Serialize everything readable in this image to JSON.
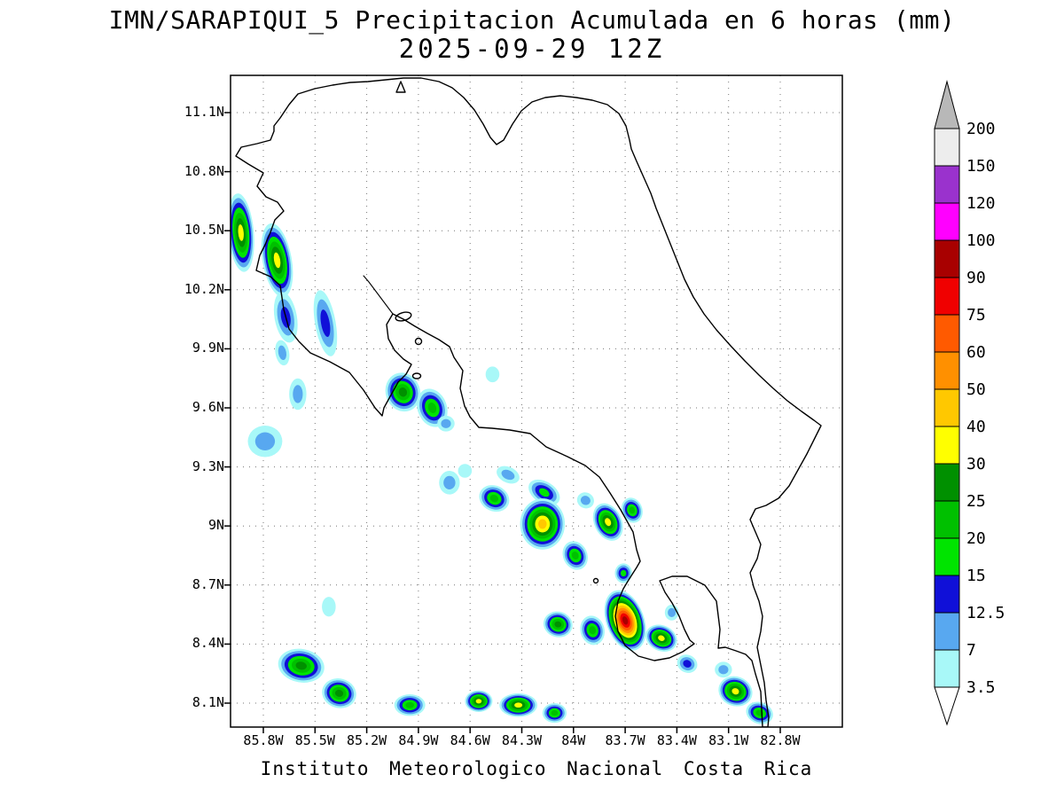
{
  "title": {
    "line1": "IMN/SARAPIQUI_5 Precipitacion Acumulada en 6 horas (mm)",
    "line2": "2025-09-29 12Z"
  },
  "footer": "Instituto Meteorologico Nacional Costa Rica",
  "map": {
    "lat_labels": [
      "11.1N",
      "10.8N",
      "10.5N",
      "10.2N",
      "9.9N",
      "9.6N",
      "9.3N",
      "9N",
      "8.7N",
      "8.4N",
      "8.1N"
    ],
    "lon_labels": [
      "85.8W",
      "85.5W",
      "85.2W",
      "84.9W",
      "84.6W",
      "84.3W",
      "84W",
      "83.7W",
      "83.4W",
      "83.1W",
      "82.8W"
    ]
  },
  "colorbar": {
    "labels": [
      "200",
      "150",
      "120",
      "100",
      "90",
      "75",
      "60",
      "50",
      "40",
      "30",
      "25",
      "20",
      "15",
      "12.5",
      "7",
      "3.5"
    ],
    "segment_colors": [
      "#ededed",
      "#9a32cd",
      "#ff00ff",
      "#a80000",
      "#f00000",
      "#ff5a00",
      "#ff9000",
      "#ffc800",
      "#ffff00",
      "#009000",
      "#00c000",
      "#00e400",
      "#1010d8",
      "#58a8f0",
      "#a8f8f8"
    ],
    "over_color": "#b8b8b8",
    "under_color": "#ffffff"
  },
  "chart_data": {
    "type": "heatmap",
    "title": "IMN/SARAPIQUI_5 Precipitacion Acumulada en 6 horas (mm)",
    "valid_time": "2025-09-29 12Z",
    "units": "mm",
    "region": "Costa Rica",
    "lon_axis_deg_w": [
      85.8,
      85.5,
      85.2,
      84.9,
      84.6,
      84.3,
      84.0,
      83.7,
      83.4,
      83.1,
      82.8
    ],
    "lat_axis_deg_n": [
      11.1,
      10.8,
      10.5,
      10.2,
      9.9,
      9.6,
      9.3,
      9.0,
      8.7,
      8.4,
      8.1
    ],
    "levels_mm": [
      3.5,
      7,
      12.5,
      15,
      20,
      25,
      30,
      40,
      50,
      60,
      75,
      90,
      100,
      120,
      150,
      200
    ],
    "level_colors": [
      "#a8f8f8",
      "#58a8f0",
      "#1010d8",
      "#00e400",
      "#00c000",
      "#009000",
      "#ffff00",
      "#ffc800",
      "#ff9000",
      "#ff5a00",
      "#f00000",
      "#a80000",
      "#ff00ff",
      "#9a32cd",
      "#ededed",
      "#b8b8b8"
    ],
    "features_note": "Shaded precipitation cells: lon(degW), lat(degN), rx/ry in deg, rot in deg, max = index of peak contour level reached in levels_mm",
    "features": [
      {
        "lon": 85.93,
        "lat": 10.49,
        "rx": 0.075,
        "ry": 0.2,
        "rot": -5,
        "max": 6
      },
      {
        "lon": 85.72,
        "lat": 10.35,
        "rx": 0.085,
        "ry": 0.19,
        "rot": -10,
        "max": 6
      },
      {
        "lon": 85.67,
        "lat": 10.06,
        "rx": 0.065,
        "ry": 0.13,
        "rot": -10,
        "max": 2
      },
      {
        "lon": 85.44,
        "lat": 10.03,
        "rx": 0.06,
        "ry": 0.17,
        "rot": -10,
        "max": 2
      },
      {
        "lon": 85.69,
        "lat": 9.88,
        "rx": 0.04,
        "ry": 0.065,
        "rot": -10,
        "max": 1
      },
      {
        "lon": 85.6,
        "lat": 9.67,
        "rx": 0.05,
        "ry": 0.08,
        "rot": 0,
        "max": 1
      },
      {
        "lon": 85.79,
        "lat": 9.43,
        "rx": 0.1,
        "ry": 0.08,
        "rot": 0,
        "max": 1
      },
      {
        "lon": 84.99,
        "lat": 9.68,
        "rx": 0.1,
        "ry": 0.1,
        "rot": -20,
        "max": 5
      },
      {
        "lon": 84.82,
        "lat": 9.6,
        "rx": 0.085,
        "ry": 0.1,
        "rot": -20,
        "max": 4
      },
      {
        "lon": 84.74,
        "lat": 9.52,
        "rx": 0.05,
        "ry": 0.04,
        "rot": 0,
        "max": 1
      },
      {
        "lon": 84.72,
        "lat": 9.22,
        "rx": 0.06,
        "ry": 0.06,
        "rot": 0,
        "max": 1
      },
      {
        "lon": 84.63,
        "lat": 9.28,
        "rx": 0.04,
        "ry": 0.035,
        "rot": 0,
        "max": 0
      },
      {
        "lon": 84.47,
        "lat": 9.77,
        "rx": 0.04,
        "ry": 0.04,
        "rot": 0,
        "max": 0
      },
      {
        "lon": 84.46,
        "lat": 9.14,
        "rx": 0.09,
        "ry": 0.065,
        "rot": 25,
        "max": 4
      },
      {
        "lon": 84.38,
        "lat": 9.26,
        "rx": 0.07,
        "ry": 0.04,
        "rot": 25,
        "max": 1
      },
      {
        "lon": 84.17,
        "lat": 9.17,
        "rx": 0.1,
        "ry": 0.055,
        "rot": 32,
        "max": 3
      },
      {
        "lon": 84.18,
        "lat": 9.01,
        "rx": 0.13,
        "ry": 0.13,
        "rot": 0,
        "max": 7
      },
      {
        "lon": 83.99,
        "lat": 8.85,
        "rx": 0.07,
        "ry": 0.075,
        "rot": -25,
        "max": 4
      },
      {
        "lon": 83.93,
        "lat": 9.13,
        "rx": 0.05,
        "ry": 0.04,
        "rot": 25,
        "max": 1
      },
      {
        "lon": 83.8,
        "lat": 9.02,
        "rx": 0.08,
        "ry": 0.1,
        "rot": -25,
        "max": 6
      },
      {
        "lon": 83.66,
        "lat": 9.08,
        "rx": 0.06,
        "ry": 0.065,
        "rot": -20,
        "max": 4
      },
      {
        "lon": 83.71,
        "lat": 8.76,
        "rx": 0.05,
        "ry": 0.05,
        "rot": 0,
        "max": 3
      },
      {
        "lon": 83.7,
        "lat": 8.52,
        "rx": 0.11,
        "ry": 0.16,
        "rot": -20,
        "max": 11
      },
      {
        "lon": 83.89,
        "lat": 8.47,
        "rx": 0.07,
        "ry": 0.075,
        "rot": -15,
        "max": 4
      },
      {
        "lon": 84.09,
        "lat": 8.5,
        "rx": 0.085,
        "ry": 0.065,
        "rot": 15,
        "max": 5
      },
      {
        "lon": 83.49,
        "lat": 8.43,
        "rx": 0.095,
        "ry": 0.065,
        "rot": 25,
        "max": 6
      },
      {
        "lon": 83.34,
        "lat": 8.3,
        "rx": 0.06,
        "ry": 0.045,
        "rot": 25,
        "max": 2
      },
      {
        "lon": 83.43,
        "lat": 8.56,
        "rx": 0.04,
        "ry": 0.04,
        "rot": 0,
        "max": 1
      },
      {
        "lon": 85.58,
        "lat": 8.29,
        "rx": 0.135,
        "ry": 0.085,
        "rot": 10,
        "max": 5
      },
      {
        "lon": 85.36,
        "lat": 8.15,
        "rx": 0.1,
        "ry": 0.075,
        "rot": 15,
        "max": 5
      },
      {
        "lon": 85.42,
        "lat": 8.59,
        "rx": 0.04,
        "ry": 0.05,
        "rot": 0,
        "max": 0
      },
      {
        "lon": 84.95,
        "lat": 8.09,
        "rx": 0.09,
        "ry": 0.055,
        "rot": 0,
        "max": 4
      },
      {
        "lon": 84.55,
        "lat": 8.11,
        "rx": 0.08,
        "ry": 0.055,
        "rot": 0,
        "max": 6
      },
      {
        "lon": 84.32,
        "lat": 8.09,
        "rx": 0.11,
        "ry": 0.06,
        "rot": 0,
        "max": 6
      },
      {
        "lon": 84.11,
        "lat": 8.05,
        "rx": 0.07,
        "ry": 0.05,
        "rot": 0,
        "max": 4
      },
      {
        "lon": 83.06,
        "lat": 8.16,
        "rx": 0.1,
        "ry": 0.075,
        "rot": 20,
        "max": 6
      },
      {
        "lon": 82.92,
        "lat": 8.05,
        "rx": 0.08,
        "ry": 0.055,
        "rot": 20,
        "max": 4
      },
      {
        "lon": 83.13,
        "lat": 8.27,
        "rx": 0.05,
        "ry": 0.04,
        "rot": 0,
        "max": 1
      }
    ]
  }
}
